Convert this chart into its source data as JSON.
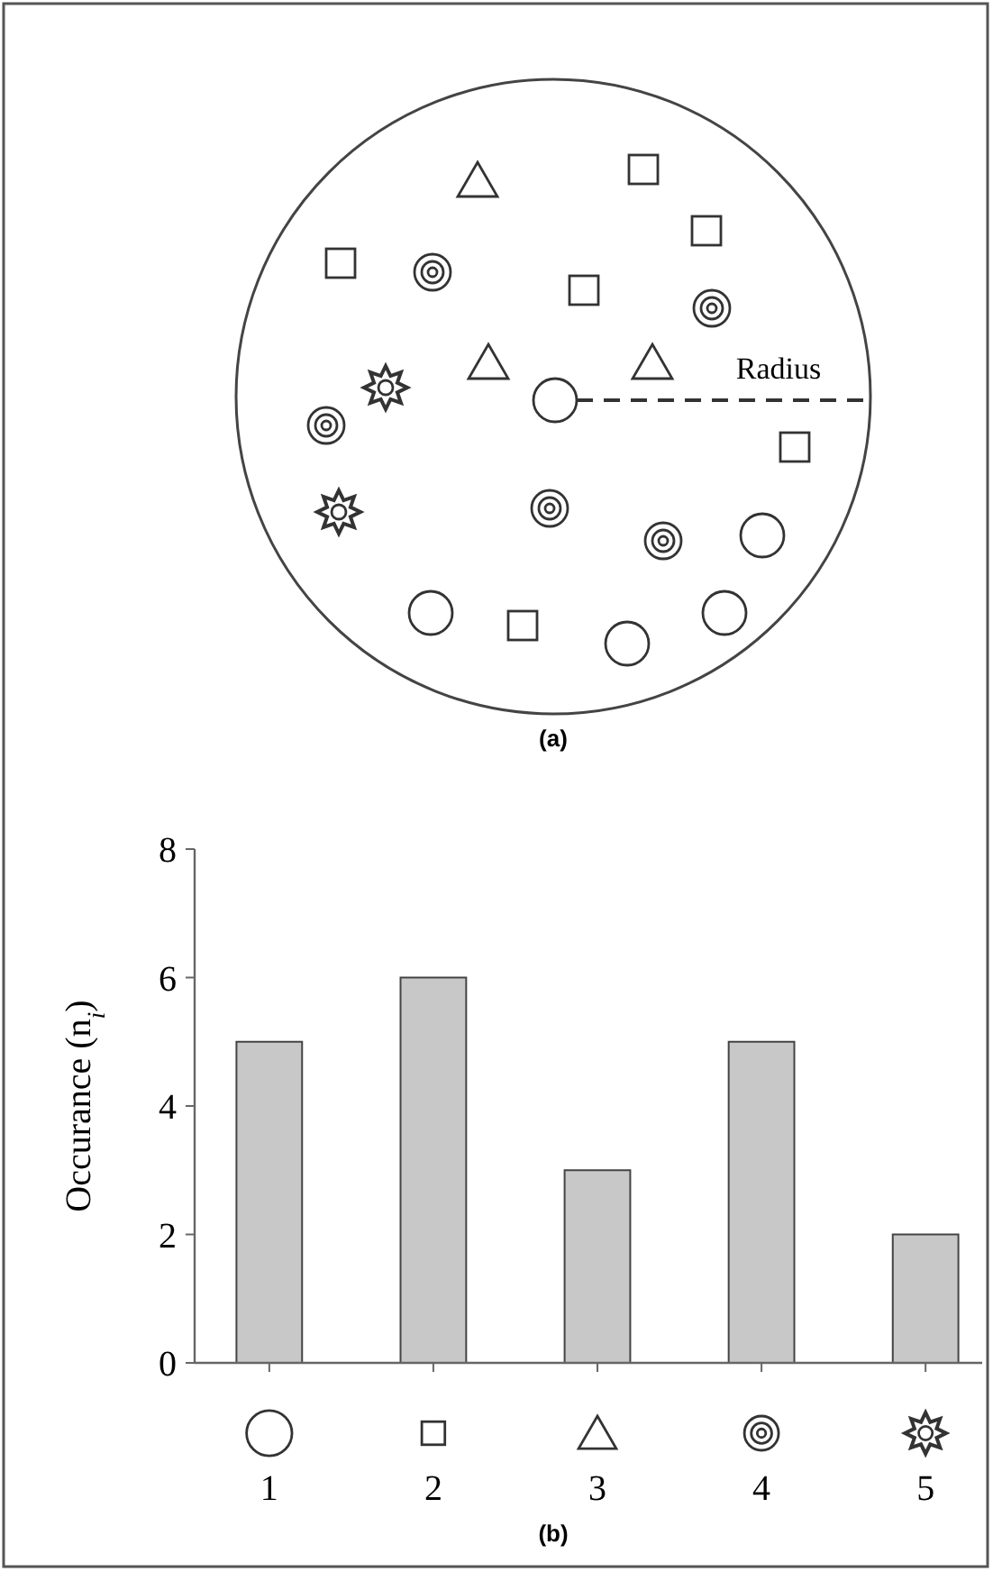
{
  "chart_data": {
    "type": "bar",
    "ylabel": "Occurance (n$_{i}$)",
    "categories": [
      "1",
      "2",
      "3",
      "4",
      "5"
    ],
    "values": [
      5,
      6,
      3,
      5,
      2
    ],
    "color": "#c8c8c8",
    "ylim": [
      0,
      8
    ],
    "yticks": [
      0,
      2,
      4,
      6,
      8
    ],
    "grid": false,
    "annotations": [
      "(a)",
      "Radius",
      "(b)"
    ]
  }
}
